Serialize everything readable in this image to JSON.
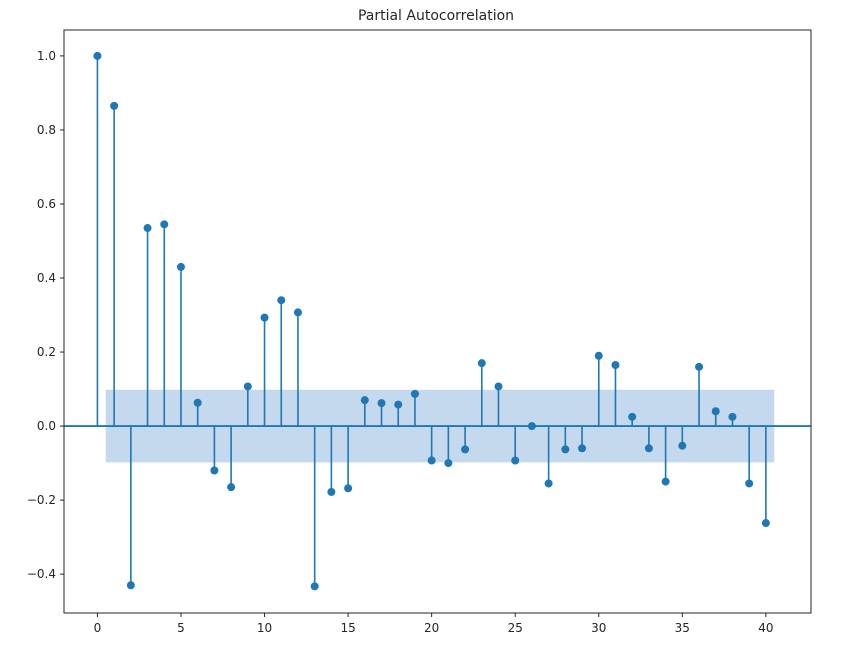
{
  "chart_data": {
    "type": "stem",
    "title": "Partial Autocorrelation",
    "xlabel": "",
    "ylabel": "",
    "xlim": [
      -2,
      42.7
    ],
    "ylim": [
      -0.505,
      1.07
    ],
    "x_ticks": [
      0,
      5,
      10,
      15,
      20,
      25,
      30,
      35,
      40
    ],
    "x_tick_labels": [
      "0",
      "5",
      "10",
      "15",
      "20",
      "25",
      "30",
      "35",
      "40"
    ],
    "y_ticks": [
      1.0,
      0.8,
      0.6,
      0.4,
      0.2,
      0.0,
      -0.2,
      -0.4
    ],
    "y_tick_labels": [
      "1.0",
      "0.8",
      "0.6",
      "0.4",
      "0.2",
      "0.0",
      "−0.2",
      "−0.4"
    ],
    "confidence_band": {
      "x_start": 0.5,
      "x_end": 40.5,
      "lower": -0.098,
      "upper": 0.098
    },
    "grid": false,
    "colors": {
      "stem": "#1f77b4",
      "band": "#c5d9ee",
      "baseline": "#1f77b4"
    },
    "lags": [
      0,
      1,
      2,
      3,
      4,
      5,
      6,
      7,
      8,
      9,
      10,
      11,
      12,
      13,
      14,
      15,
      16,
      17,
      18,
      19,
      20,
      21,
      22,
      23,
      24,
      25,
      26,
      27,
      28,
      29,
      30,
      31,
      32,
      33,
      34,
      35,
      36,
      37,
      38,
      39,
      40
    ],
    "values": [
      1.0,
      0.865,
      -0.43,
      0.535,
      0.545,
      0.43,
      0.063,
      -0.12,
      -0.165,
      0.107,
      0.293,
      0.34,
      0.307,
      -0.433,
      -0.178,
      -0.168,
      0.07,
      0.062,
      0.058,
      0.087,
      -0.093,
      -0.1,
      -0.063,
      0.17,
      0.107,
      -0.093,
      0.0,
      -0.155,
      -0.063,
      -0.06,
      0.19,
      0.165,
      0.025,
      -0.06,
      -0.15,
      -0.053,
      0.16,
      0.04,
      0.025,
      -0.155,
      -0.262
    ]
  }
}
